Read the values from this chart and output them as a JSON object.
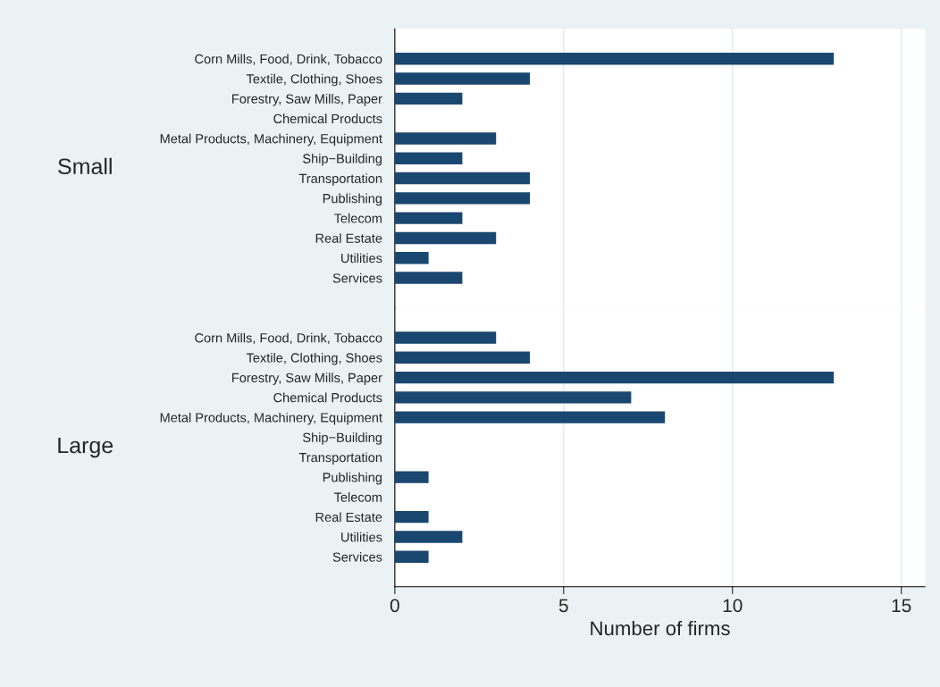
{
  "chart_data": [
    {
      "type": "bar",
      "orientation": "horizontal",
      "ylabel": "Small",
      "categories": [
        "Corn Mills, Food, Drink, Tobacco",
        "Textile, Clothing, Shoes",
        "Forestry, Saw Mills, Paper",
        "Chemical Products",
        "Metal Products, Machinery, Equipment",
        "Ship−Building",
        "Transportation",
        "Publishing",
        "Telecom",
        "Real Estate",
        "Utilities",
        "Services"
      ],
      "values": [
        13,
        4,
        2,
        0,
        3,
        2,
        4,
        4,
        2,
        3,
        1,
        2
      ],
      "color": "#1a476f",
      "xlim": [
        0,
        15.7
      ],
      "xticks": [
        0,
        5,
        10,
        15
      ],
      "grid": "x",
      "tick_labels": "y"
    },
    {
      "type": "bar",
      "orientation": "horizontal",
      "ylabel": "Large",
      "xlabel": "Number of firms",
      "categories": [
        "Corn Mills, Food, Drink, Tobacco",
        "Textile, Clothing, Shoes",
        "Forestry, Saw Mills, Paper",
        "Chemical Products",
        "Metal Products, Machinery, Equipment",
        "Ship−Building",
        "Transportation",
        "Publishing",
        "Telecom",
        "Real Estate",
        "Utilities",
        "Services"
      ],
      "values": [
        3,
        4,
        13,
        7,
        8,
        0,
        0,
        1,
        0,
        1,
        2,
        1
      ],
      "color": "#1a476f",
      "xlim": [
        0,
        15.7
      ],
      "xticks": [
        0,
        5,
        10,
        15
      ],
      "grid": "x"
    }
  ]
}
